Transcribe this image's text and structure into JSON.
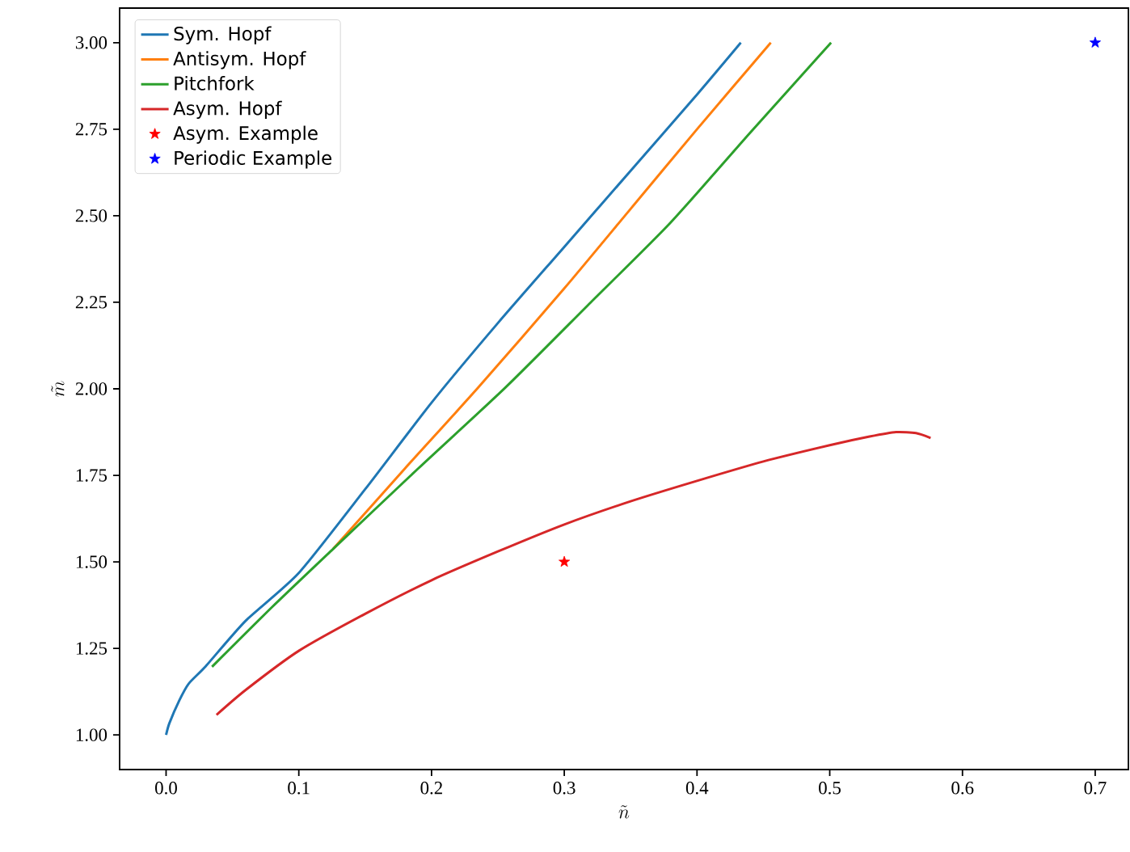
{
  "chart_data": {
    "type": "line",
    "xlabel": "\\tilde{n}",
    "ylabel": "\\tilde{m}",
    "xlim": [
      -0.035,
      0.725
    ],
    "ylim": [
      0.9,
      3.1
    ],
    "xticks": [
      {
        "value": 0,
        "label": "0.0"
      },
      0.1,
      0.2,
      0.3,
      0.4,
      0.5,
      0.6,
      0.7
    ],
    "yticks": [
      {
        "value": 1,
        "label": "1.00"
      },
      1.25,
      {
        "value": 1.5,
        "label": "1.50"
      },
      1.75,
      {
        "value": 2,
        "label": "2.00"
      },
      2.25,
      {
        "value": 2.5,
        "label": "2.50"
      },
      2.75,
      {
        "value": 3,
        "label": "3.00"
      }
    ],
    "grid": false,
    "legend": "top left",
    "marker": "none",
    "line_style": "solid",
    "series": [
      {
        "name": "Sym. Hopf",
        "color": "#1f77b4",
        "x": [
          0,
          0.0025,
          0.01,
          0.017,
          0.03,
          0.06,
          0.1,
          0.15,
          0.2,
          0.25,
          0.3,
          0.35,
          0.4,
          0.433
        ],
        "values": [
          1.0,
          1.034,
          1.1,
          1.148,
          1.199,
          1.33,
          1.468,
          1.71,
          1.96,
          2.19,
          2.41,
          2.63,
          2.85,
          3.0
        ]
      },
      {
        "name": "Antisym. Hopf",
        "color": "#ff7f0e",
        "x": [
          0.126,
          0.18,
          0.2355,
          0.3,
          0.35,
          0.4,
          0.4556
        ],
        "values": [
          1.538,
          1.77,
          2.005,
          2.29,
          2.52,
          2.75,
          3.0
        ]
      },
      {
        "name": "Pitchfork",
        "color": "#2ca02c",
        "x": [
          0.0346,
          0.08,
          0.126,
          0.19,
          0.256,
          0.32,
          0.38,
          0.44,
          0.501
        ],
        "values": [
          1.197,
          1.37,
          1.538,
          1.77,
          2.005,
          2.25,
          2.48,
          2.74,
          3.0
        ]
      },
      {
        "name": "Asym. Hopf",
        "color": "#d62728",
        "x": [
          0.038,
          0.06,
          0.1,
          0.15,
          0.2,
          0.25,
          0.3,
          0.35,
          0.4,
          0.45,
          0.5,
          0.53,
          0.55,
          0.565,
          0.576
        ],
        "values": [
          1.058,
          1.13,
          1.243,
          1.35,
          1.447,
          1.53,
          1.608,
          1.675,
          1.734,
          1.79,
          1.837,
          1.862,
          1.875,
          1.872,
          1.858
        ]
      },
      {
        "name": "Asym. Example",
        "type": "scatter",
        "marker": "star",
        "color": "#ff0000",
        "x": [
          0.3
        ],
        "values": [
          1.5
        ]
      },
      {
        "name": "Periodic Example",
        "type": "scatter",
        "marker": "star",
        "color": "#0000ff",
        "x": [
          0.7
        ],
        "values": [
          3.0
        ]
      }
    ]
  }
}
